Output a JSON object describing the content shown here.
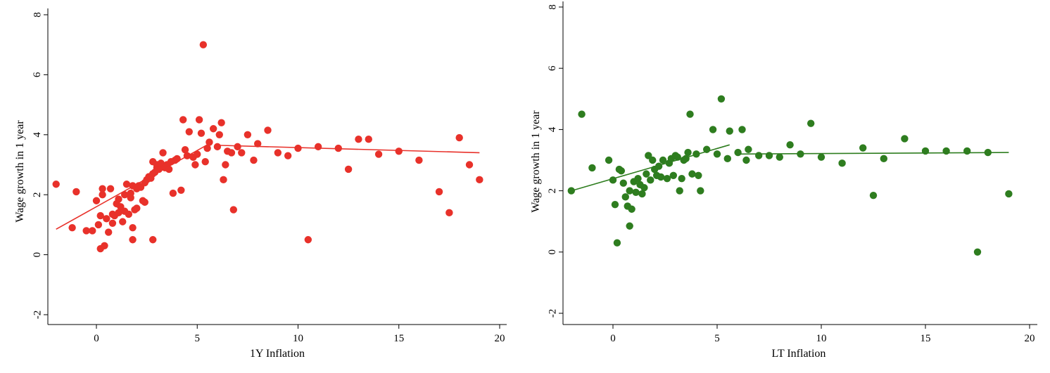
{
  "chart_data": [
    {
      "type": "scatter",
      "color": "#e8312a",
      "xlabel": "1Y Inflation",
      "ylabel": "Wage growth in 1 year",
      "xlim": [
        -2.3,
        20.3
      ],
      "ylim": [
        -2.2,
        8.2
      ],
      "xticks": [
        0,
        5,
        10,
        15,
        20
      ],
      "yticks": [
        -2,
        0,
        2,
        4,
        6,
        8
      ],
      "x_tick_labels": [
        "0",
        "5",
        "10",
        "15",
        "20"
      ],
      "y_tick_labels": [
        "-2",
        "0",
        "2",
        "4",
        "6",
        "8"
      ],
      "grid": false,
      "points": [
        [
          -2.0,
          2.35
        ],
        [
          -1.2,
          0.9
        ],
        [
          -1.0,
          2.1
        ],
        [
          -0.5,
          0.8
        ],
        [
          -0.2,
          0.8
        ],
        [
          0.0,
          1.8
        ],
        [
          0.1,
          1.0
        ],
        [
          0.2,
          1.3
        ],
        [
          0.2,
          0.2
        ],
        [
          0.3,
          2.0
        ],
        [
          0.3,
          2.2
        ],
        [
          0.4,
          0.3
        ],
        [
          0.5,
          1.2
        ],
        [
          0.6,
          0.75
        ],
        [
          0.7,
          2.2
        ],
        [
          0.8,
          1.35
        ],
        [
          0.8,
          1.05
        ],
        [
          0.9,
          1.3
        ],
        [
          1.0,
          1.7
        ],
        [
          1.1,
          1.85
        ],
        [
          1.1,
          1.4
        ],
        [
          1.2,
          1.6
        ],
        [
          1.3,
          1.1
        ],
        [
          1.4,
          1.45
        ],
        [
          1.4,
          2.0
        ],
        [
          1.5,
          2.35
        ],
        [
          1.6,
          1.35
        ],
        [
          1.7,
          1.9
        ],
        [
          1.7,
          2.05
        ],
        [
          1.8,
          2.3
        ],
        [
          1.8,
          0.9
        ],
        [
          1.8,
          0.5
        ],
        [
          1.9,
          1.5
        ],
        [
          2.0,
          1.55
        ],
        [
          2.0,
          2.2
        ],
        [
          2.1,
          2.3
        ],
        [
          2.2,
          2.25
        ],
        [
          2.3,
          1.8
        ],
        [
          2.4,
          2.4
        ],
        [
          2.4,
          1.75
        ],
        [
          2.5,
          2.5
        ],
        [
          2.6,
          2.6
        ],
        [
          2.7,
          2.55
        ],
        [
          2.8,
          2.7
        ],
        [
          2.8,
          0.5
        ],
        [
          2.8,
          3.1
        ],
        [
          2.9,
          2.75
        ],
        [
          3.0,
          2.9
        ],
        [
          3.0,
          3.0
        ],
        [
          3.1,
          2.85
        ],
        [
          3.2,
          3.05
        ],
        [
          3.3,
          3.4
        ],
        [
          3.4,
          2.9
        ],
        [
          3.5,
          3.0
        ],
        [
          3.6,
          2.85
        ],
        [
          3.7,
          3.1
        ],
        [
          3.8,
          2.05
        ],
        [
          3.9,
          3.15
        ],
        [
          4.0,
          3.2
        ],
        [
          4.2,
          2.15
        ],
        [
          4.3,
          4.5
        ],
        [
          4.4,
          3.5
        ],
        [
          4.5,
          3.3
        ],
        [
          4.6,
          4.1
        ],
        [
          4.8,
          3.25
        ],
        [
          4.9,
          3.0
        ],
        [
          5.0,
          3.35
        ],
        [
          5.1,
          4.5
        ],
        [
          5.2,
          4.05
        ],
        [
          5.3,
          7.0
        ],
        [
          5.4,
          3.1
        ],
        [
          5.5,
          3.55
        ],
        [
          5.6,
          3.75
        ],
        [
          5.8,
          4.2
        ],
        [
          6.0,
          3.6
        ],
        [
          6.1,
          4.0
        ],
        [
          6.2,
          4.4
        ],
        [
          6.3,
          2.5
        ],
        [
          6.4,
          3.0
        ],
        [
          6.5,
          3.45
        ],
        [
          6.7,
          3.4
        ],
        [
          6.8,
          1.5
        ],
        [
          7.0,
          3.6
        ],
        [
          7.2,
          3.4
        ],
        [
          7.5,
          4.0
        ],
        [
          7.8,
          3.15
        ],
        [
          8.0,
          3.7
        ],
        [
          8.5,
          4.15
        ],
        [
          9.0,
          3.4
        ],
        [
          9.5,
          3.3
        ],
        [
          10.0,
          3.55
        ],
        [
          10.5,
          0.5
        ],
        [
          11.0,
          3.6
        ],
        [
          12.0,
          3.55
        ],
        [
          12.5,
          2.85
        ],
        [
          13.0,
          3.85
        ],
        [
          13.5,
          3.85
        ],
        [
          14.0,
          3.35
        ],
        [
          15.0,
          3.45
        ],
        [
          16.0,
          3.15
        ],
        [
          17.0,
          2.1
        ],
        [
          17.5,
          1.4
        ],
        [
          18.0,
          3.9
        ],
        [
          18.5,
          3.0
        ],
        [
          19.0,
          2.5
        ]
      ],
      "fit_lines": [
        [
          [
            -2.0,
            0.85
          ],
          [
            5.6,
            3.7
          ]
        ],
        [
          [
            5.9,
            3.65
          ],
          [
            19.0,
            3.4
          ]
        ]
      ]
    },
    {
      "type": "scatter",
      "color": "#2e7d1f",
      "xlabel": "LT Inflation",
      "ylabel": "Wage growth in 1 year",
      "xlim": [
        -2.3,
        20.3
      ],
      "ylim": [
        -2.2,
        8.2
      ],
      "xticks": [
        0,
        5,
        10,
        15,
        20
      ],
      "yticks": [
        -2,
        0,
        2,
        4,
        6,
        8
      ],
      "x_tick_labels": [
        "0",
        "5",
        "10",
        "15",
        "20"
      ],
      "y_tick_labels": [
        "-2",
        "0",
        "2",
        "4",
        "6",
        "8"
      ],
      "grid": false,
      "points": [
        [
          -2.0,
          2.0
        ],
        [
          -1.5,
          4.5
        ],
        [
          -1.0,
          2.75
        ],
        [
          -0.2,
          3.0
        ],
        [
          0.0,
          2.35
        ],
        [
          0.1,
          1.55
        ],
        [
          0.2,
          0.3
        ],
        [
          0.3,
          2.7
        ],
        [
          0.4,
          2.65
        ],
        [
          0.5,
          2.25
        ],
        [
          0.6,
          1.8
        ],
        [
          0.7,
          1.5
        ],
        [
          0.8,
          0.85
        ],
        [
          0.8,
          2.0
        ],
        [
          0.9,
          1.4
        ],
        [
          1.0,
          2.3
        ],
        [
          1.1,
          1.95
        ],
        [
          1.2,
          2.4
        ],
        [
          1.3,
          2.2
        ],
        [
          1.4,
          1.9
        ],
        [
          1.5,
          2.1
        ],
        [
          1.6,
          2.55
        ],
        [
          1.7,
          3.15
        ],
        [
          1.8,
          2.35
        ],
        [
          1.9,
          3.0
        ],
        [
          2.0,
          2.7
        ],
        [
          2.1,
          2.5
        ],
        [
          2.2,
          2.8
        ],
        [
          2.3,
          2.45
        ],
        [
          2.4,
          3.0
        ],
        [
          2.6,
          2.4
        ],
        [
          2.7,
          2.9
        ],
        [
          2.8,
          3.05
        ],
        [
          2.9,
          2.5
        ],
        [
          3.0,
          3.15
        ],
        [
          3.1,
          3.1
        ],
        [
          3.2,
          2.0
        ],
        [
          3.3,
          2.4
        ],
        [
          3.4,
          3.0
        ],
        [
          3.5,
          3.05
        ],
        [
          3.6,
          3.25
        ],
        [
          3.7,
          4.5
        ],
        [
          3.8,
          2.55
        ],
        [
          4.0,
          3.2
        ],
        [
          4.1,
          2.5
        ],
        [
          4.2,
          2.0
        ],
        [
          4.5,
          3.35
        ],
        [
          4.8,
          4.0
        ],
        [
          5.0,
          3.2
        ],
        [
          5.2,
          5.0
        ],
        [
          5.5,
          3.05
        ],
        [
          5.6,
          3.95
        ],
        [
          6.0,
          3.25
        ],
        [
          6.2,
          4.0
        ],
        [
          6.4,
          3.0
        ],
        [
          6.5,
          3.35
        ],
        [
          7.0,
          3.15
        ],
        [
          7.5,
          3.15
        ],
        [
          8.0,
          3.1
        ],
        [
          8.5,
          3.5
        ],
        [
          9.0,
          3.2
        ],
        [
          9.5,
          4.2
        ],
        [
          10.0,
          3.1
        ],
        [
          11.0,
          2.9
        ],
        [
          12.0,
          3.4
        ],
        [
          12.5,
          1.85
        ],
        [
          13.0,
          3.05
        ],
        [
          14.0,
          3.7
        ],
        [
          15.0,
          3.3
        ],
        [
          16.0,
          3.3
        ],
        [
          17.0,
          3.3
        ],
        [
          17.5,
          0.0
        ],
        [
          18.0,
          3.25
        ],
        [
          19.0,
          1.9
        ]
      ],
      "fit_lines": [
        [
          [
            -2.0,
            2.0
          ],
          [
            5.6,
            3.5
          ]
        ],
        [
          [
            5.9,
            3.2
          ],
          [
            19.0,
            3.25
          ]
        ]
      ]
    }
  ]
}
